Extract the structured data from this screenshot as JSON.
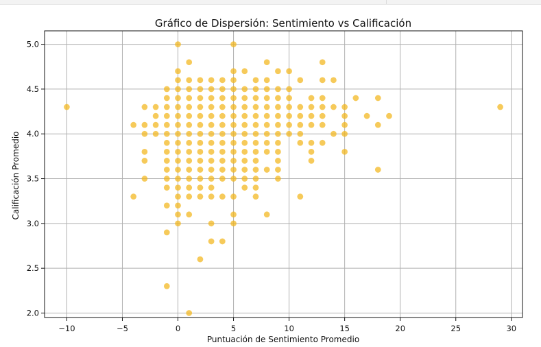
{
  "chart_data": {
    "type": "scatter",
    "title": "Gráfico de Dispersión: Sentimiento vs Calificación",
    "xlabel": "Puntuación de Sentimiento Promedio",
    "ylabel": "Calificación Promedio",
    "xlim": [
      -12,
      31
    ],
    "ylim": [
      1.95,
      5.15
    ],
    "x_ticks": [
      -10,
      -5,
      0,
      5,
      10,
      15,
      20,
      25,
      30
    ],
    "x_tick_labels": [
      "−10",
      "−5",
      "0",
      "5",
      "10",
      "15",
      "20",
      "25",
      "30"
    ],
    "y_ticks": [
      2.0,
      2.5,
      3.0,
      3.5,
      4.0,
      4.5,
      5.0
    ],
    "y_tick_labels": [
      "2.0",
      "2.5",
      "3.0",
      "3.5",
      "4.0",
      "4.5",
      "5.0"
    ],
    "grid": true,
    "marker_color": "#f2b51b",
    "marker_opacity": 0.72,
    "points": [
      [
        -10,
        4.3
      ],
      [
        -4,
        4.1
      ],
      [
        -4,
        3.3
      ],
      [
        -3,
        4.3
      ],
      [
        -3,
        4.1
      ],
      [
        -3,
        4.0
      ],
      [
        -3,
        3.8
      ],
      [
        -3,
        3.7
      ],
      [
        -3,
        3.5
      ],
      [
        -2,
        4.3
      ],
      [
        -2,
        4.2
      ],
      [
        -2,
        4.1
      ],
      [
        -2,
        4.0
      ],
      [
        -1,
        4.5
      ],
      [
        -1,
        4.4
      ],
      [
        -1,
        4.3
      ],
      [
        -1,
        4.2
      ],
      [
        -1,
        4.1
      ],
      [
        -1,
        4.0
      ],
      [
        -1,
        3.9
      ],
      [
        -1,
        3.8
      ],
      [
        -1,
        3.7
      ],
      [
        -1,
        3.6
      ],
      [
        -1,
        3.5
      ],
      [
        -1,
        3.4
      ],
      [
        -1,
        3.2
      ],
      [
        -1,
        2.9
      ],
      [
        -1,
        2.3
      ],
      [
        0,
        5.0
      ],
      [
        0,
        4.7
      ],
      [
        0,
        4.6
      ],
      [
        0,
        4.5
      ],
      [
        0,
        4.4
      ],
      [
        0,
        4.3
      ],
      [
        0,
        4.2
      ],
      [
        0,
        4.1
      ],
      [
        0,
        4.0
      ],
      [
        0,
        3.9
      ],
      [
        0,
        3.8
      ],
      [
        0,
        3.7
      ],
      [
        0,
        3.6
      ],
      [
        0,
        3.5
      ],
      [
        0,
        3.4
      ],
      [
        0,
        3.3
      ],
      [
        0,
        3.2
      ],
      [
        0,
        3.1
      ],
      [
        0,
        3.0
      ],
      [
        1,
        4.8
      ],
      [
        1,
        4.6
      ],
      [
        1,
        4.5
      ],
      [
        1,
        4.4
      ],
      [
        1,
        4.3
      ],
      [
        1,
        4.2
      ],
      [
        1,
        4.1
      ],
      [
        1,
        4.0
      ],
      [
        1,
        3.9
      ],
      [
        1,
        3.8
      ],
      [
        1,
        3.7
      ],
      [
        1,
        3.6
      ],
      [
        1,
        3.5
      ],
      [
        1,
        3.4
      ],
      [
        1,
        3.3
      ],
      [
        1,
        3.1
      ],
      [
        1,
        2.0
      ],
      [
        2,
        4.6
      ],
      [
        2,
        4.5
      ],
      [
        2,
        4.4
      ],
      [
        2,
        4.3
      ],
      [
        2,
        4.2
      ],
      [
        2,
        4.1
      ],
      [
        2,
        4.0
      ],
      [
        2,
        3.9
      ],
      [
        2,
        3.8
      ],
      [
        2,
        3.7
      ],
      [
        2,
        3.6
      ],
      [
        2,
        3.5
      ],
      [
        2,
        3.4
      ],
      [
        2,
        3.3
      ],
      [
        2,
        2.6
      ],
      [
        3,
        4.6
      ],
      [
        3,
        4.5
      ],
      [
        3,
        4.4
      ],
      [
        3,
        4.3
      ],
      [
        3,
        4.2
      ],
      [
        3,
        4.1
      ],
      [
        3,
        4.0
      ],
      [
        3,
        3.9
      ],
      [
        3,
        3.8
      ],
      [
        3,
        3.7
      ],
      [
        3,
        3.6
      ],
      [
        3,
        3.5
      ],
      [
        3,
        3.4
      ],
      [
        3,
        3.3
      ],
      [
        3,
        3.0
      ],
      [
        3,
        2.8
      ],
      [
        4,
        4.6
      ],
      [
        4,
        4.5
      ],
      [
        4,
        4.4
      ],
      [
        4,
        4.3
      ],
      [
        4,
        4.2
      ],
      [
        4,
        4.1
      ],
      [
        4,
        4.0
      ],
      [
        4,
        3.9
      ],
      [
        4,
        3.8
      ],
      [
        4,
        3.7
      ],
      [
        4,
        3.6
      ],
      [
        4,
        3.5
      ],
      [
        4,
        3.3
      ],
      [
        4,
        2.8
      ],
      [
        5,
        5.0
      ],
      [
        5,
        4.7
      ],
      [
        5,
        4.6
      ],
      [
        5,
        4.5
      ],
      [
        5,
        4.4
      ],
      [
        5,
        4.3
      ],
      [
        5,
        4.2
      ],
      [
        5,
        4.1
      ],
      [
        5,
        4.0
      ],
      [
        5,
        3.9
      ],
      [
        5,
        3.8
      ],
      [
        5,
        3.7
      ],
      [
        5,
        3.6
      ],
      [
        5,
        3.5
      ],
      [
        5,
        3.3
      ],
      [
        5,
        3.1
      ],
      [
        5,
        3.0
      ],
      [
        6,
        4.7
      ],
      [
        6,
        4.5
      ],
      [
        6,
        4.4
      ],
      [
        6,
        4.3
      ],
      [
        6,
        4.2
      ],
      [
        6,
        4.1
      ],
      [
        6,
        4.0
      ],
      [
        6,
        3.9
      ],
      [
        6,
        3.8
      ],
      [
        6,
        3.7
      ],
      [
        6,
        3.6
      ],
      [
        6,
        3.5
      ],
      [
        6,
        3.4
      ],
      [
        7,
        4.6
      ],
      [
        7,
        4.5
      ],
      [
        7,
        4.4
      ],
      [
        7,
        4.3
      ],
      [
        7,
        4.2
      ],
      [
        7,
        4.1
      ],
      [
        7,
        4.0
      ],
      [
        7,
        3.9
      ],
      [
        7,
        3.8
      ],
      [
        7,
        3.7
      ],
      [
        7,
        3.6
      ],
      [
        7,
        3.5
      ],
      [
        7,
        3.4
      ],
      [
        7,
        3.3
      ],
      [
        8,
        4.8
      ],
      [
        8,
        4.6
      ],
      [
        8,
        4.5
      ],
      [
        8,
        4.4
      ],
      [
        8,
        4.3
      ],
      [
        8,
        4.2
      ],
      [
        8,
        4.1
      ],
      [
        8,
        4.0
      ],
      [
        8,
        3.9
      ],
      [
        8,
        3.8
      ],
      [
        8,
        3.6
      ],
      [
        8,
        3.1
      ],
      [
        9,
        4.7
      ],
      [
        9,
        4.5
      ],
      [
        9,
        4.4
      ],
      [
        9,
        4.3
      ],
      [
        9,
        4.2
      ],
      [
        9,
        4.1
      ],
      [
        9,
        4.0
      ],
      [
        9,
        3.9
      ],
      [
        9,
        3.8
      ],
      [
        9,
        3.7
      ],
      [
        9,
        3.6
      ],
      [
        9,
        3.5
      ],
      [
        10,
        4.7
      ],
      [
        10,
        4.5
      ],
      [
        10,
        4.4
      ],
      [
        10,
        4.3
      ],
      [
        10,
        4.2
      ],
      [
        10,
        4.1
      ],
      [
        10,
        4.0
      ],
      [
        11,
        4.6
      ],
      [
        11,
        4.3
      ],
      [
        11,
        4.2
      ],
      [
        11,
        4.1
      ],
      [
        11,
        4.0
      ],
      [
        11,
        3.9
      ],
      [
        11,
        3.3
      ],
      [
        12,
        4.4
      ],
      [
        12,
        4.3
      ],
      [
        12,
        4.2
      ],
      [
        12,
        4.1
      ],
      [
        12,
        3.9
      ],
      [
        12,
        3.8
      ],
      [
        12,
        3.7
      ],
      [
        13,
        4.8
      ],
      [
        13,
        4.6
      ],
      [
        13,
        4.4
      ],
      [
        13,
        4.3
      ],
      [
        13,
        4.2
      ],
      [
        13,
        4.1
      ],
      [
        13,
        3.9
      ],
      [
        14,
        4.6
      ],
      [
        14,
        4.3
      ],
      [
        14,
        4.0
      ],
      [
        15,
        4.3
      ],
      [
        15,
        4.2
      ],
      [
        15,
        4.1
      ],
      [
        15,
        4.0
      ],
      [
        15,
        3.8
      ],
      [
        16,
        4.4
      ],
      [
        17,
        4.2
      ],
      [
        18,
        4.4
      ],
      [
        18,
        4.1
      ],
      [
        18,
        3.6
      ],
      [
        19,
        4.2
      ],
      [
        29,
        4.3
      ]
    ]
  }
}
